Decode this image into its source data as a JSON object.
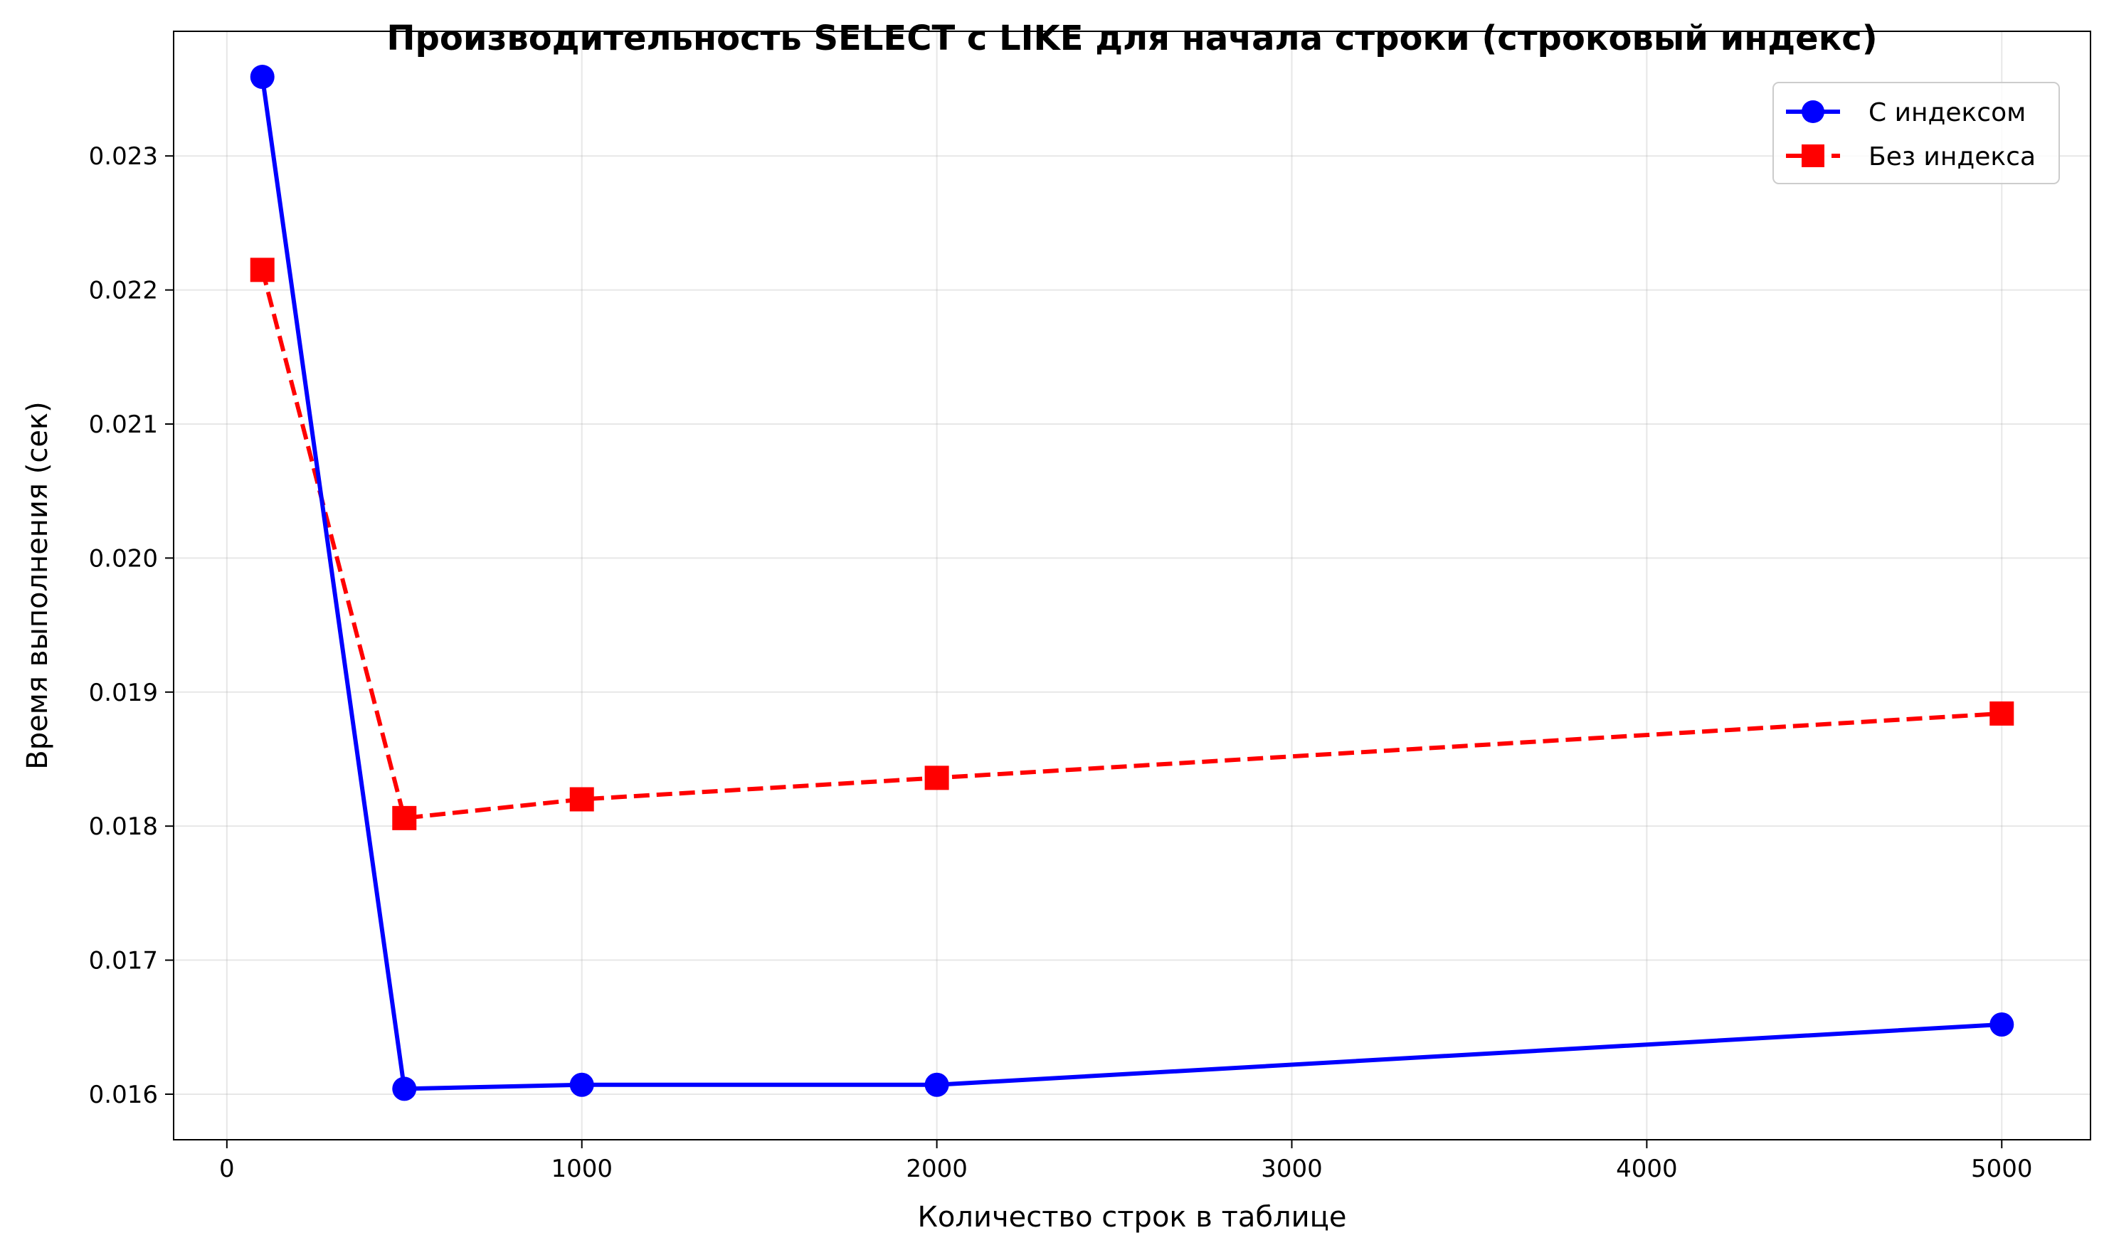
{
  "chart_data": {
    "type": "line",
    "title": "Производительность SELECT с LIKE для начала строки (строковый индекс)",
    "xlabel": "Количество строк в таблице",
    "ylabel": "Время выполнения (сек)",
    "xlim": [
      -150,
      5250
    ],
    "ylim": [
      0.01566,
      0.02393
    ],
    "x_ticks": [
      0,
      1000,
      2000,
      3000,
      4000,
      5000
    ],
    "x_tick_labels": [
      "0",
      "1000",
      "2000",
      "3000",
      "4000",
      "5000"
    ],
    "y_ticks": [
      0.016,
      0.017,
      0.018,
      0.019,
      0.02,
      0.021,
      0.022,
      0.023
    ],
    "y_tick_labels": [
      "0.016",
      "0.017",
      "0.018",
      "0.019",
      "0.020",
      "0.021",
      "0.022",
      "0.023"
    ],
    "grid": true,
    "legend_position": "top-right",
    "x": [
      100,
      500,
      1000,
      2000,
      5000
    ],
    "series": [
      {
        "name": "С индексом",
        "values": [
          0.02359,
          0.01604,
          0.01607,
          0.01607,
          0.01652
        ],
        "color": "#0000ff",
        "marker": "circle",
        "line_style": "solid"
      },
      {
        "name": "Без индекса",
        "values": [
          0.02215,
          0.01806,
          0.0182,
          0.01836,
          0.01884
        ],
        "color": "#ff0000",
        "marker": "square",
        "line_style": "dashed"
      }
    ]
  }
}
